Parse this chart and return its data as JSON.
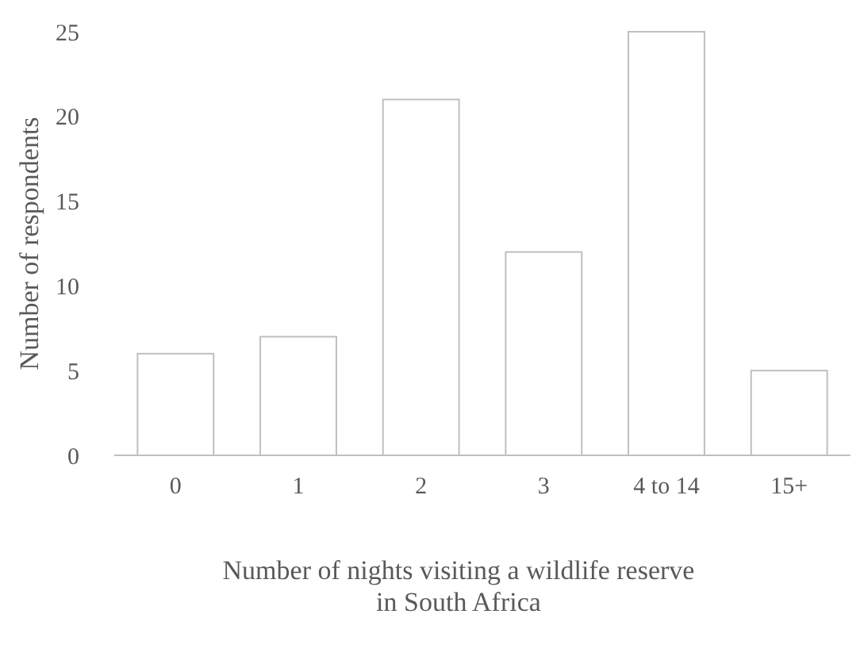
{
  "chart_data": {
    "type": "bar",
    "xlabel": "Number of nights visiting a wildlife reserve in South Africa",
    "ylabel": "Number of respondents",
    "categories": [
      "0",
      "1",
      "2",
      "3",
      "4 to 14",
      "15+"
    ],
    "values": [
      6,
      7,
      21,
      12,
      25,
      5
    ],
    "color": "#ffffff",
    "ylim": [
      0,
      25
    ],
    "yticks": [
      0,
      5,
      10,
      15,
      20,
      25
    ],
    "grid": false
  }
}
